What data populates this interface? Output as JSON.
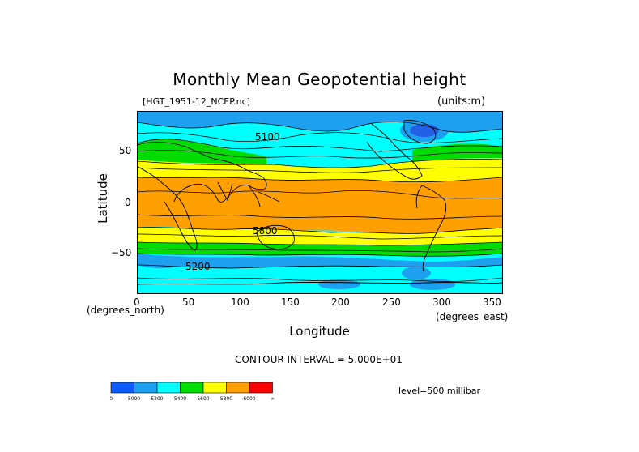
{
  "title": "Monthly Mean Geopotential height",
  "dataset_label": "[HGT_1951-12_NCEP.nc]",
  "units_label": "(units:m)",
  "x_axis": {
    "label": "Longitude",
    "unit_label": "(degrees_east)",
    "ticks": [
      "0",
      "50",
      "100",
      "150",
      "200",
      "250",
      "300",
      "350"
    ]
  },
  "y_axis": {
    "label": "Latitude",
    "unit_label": "(degrees_north)",
    "ticks": [
      "50",
      "0",
      "−50"
    ]
  },
  "contour_interval": "CONTOUR INTERVAL = 5.000E+01",
  "level": "level=500 millibar",
  "contour_labels": [
    "5100",
    "5800",
    "5200"
  ],
  "colorbar": {
    "colors": [
      "#0b5cff",
      "#1da0f0",
      "#00ffff",
      "#00e000",
      "#ffff00",
      "#ff9f00",
      "#ff0000"
    ],
    "labels": [
      "0",
      "5000",
      "5200",
      "5400",
      "5600",
      "5800",
      "6000",
      "∞"
    ]
  },
  "bands": {
    "deep_blue": "#2360e6",
    "blue": "#1ea0f0",
    "cyan": "#00ffff",
    "green": "#00dc00",
    "yellow": "#ffff00",
    "orange": "#ff9f00"
  }
}
